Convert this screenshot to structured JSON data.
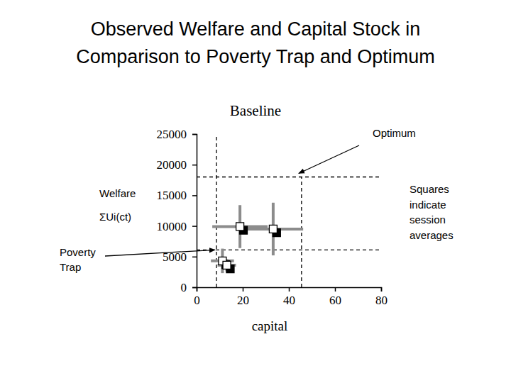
{
  "slide_title": "Observed Welfare and Capital Stock in Comparison to Poverty Trap and Optimum",
  "chart_data": {
    "type": "scatter",
    "title": "Baseline",
    "x_label": "capital",
    "y_label": [
      "Welfare",
      "ΣUi(ct)"
    ],
    "xlim": [
      0,
      80
    ],
    "xticks": [
      0,
      20,
      40,
      60,
      80
    ],
    "ylim": [
      0,
      25000
    ],
    "yticks": [
      0,
      5000,
      10000,
      15000,
      20000,
      25000
    ],
    "series": [
      {
        "color": "#ffffff",
        "marker": "square",
        "x": [
          18.8,
          33.2,
          11.2,
          13.1
        ],
        "values": [
          9900,
          9500,
          4300,
          3600
        ],
        "x_err": [
          12,
          13,
          5,
          4
        ],
        "y_err": [
          3500,
          4300,
          2000,
          1000
        ]
      },
      {
        "color": "#000000",
        "marker": "square",
        "x": [
          20.3,
          34.7,
          12.7,
          14.6
        ],
        "values": [
          9300,
          8900,
          3700,
          3000
        ]
      }
    ],
    "reference_points": [
      {
        "label": "Poverty Trap",
        "x": 8.6,
        "y": 6100
      },
      {
        "label": "Optimum",
        "x": 45.5,
        "y": 18000
      }
    ],
    "note": "Squares indicate session averages"
  }
}
